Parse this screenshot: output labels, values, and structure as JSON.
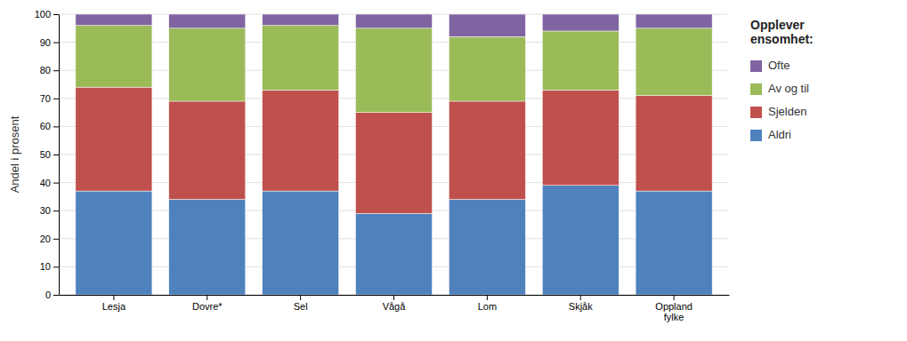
{
  "chart_data": {
    "type": "bar",
    "stacked": true,
    "categories": [
      "Lesja",
      "Dovre*",
      "Sel",
      "Vågå",
      "Lom",
      "Skjåk",
      "Oppland\nfylke"
    ],
    "series": [
      {
        "name": "Aldri",
        "color": "#4F81BD",
        "values": [
          37,
          34,
          37,
          29,
          34,
          39,
          37
        ]
      },
      {
        "name": "Sjelden",
        "color": "#C0504D",
        "values": [
          37,
          35,
          36,
          36,
          35,
          34,
          34
        ]
      },
      {
        "name": "Av og til",
        "color": "#9BBB59",
        "values": [
          22,
          26,
          23,
          30,
          23,
          21,
          24
        ]
      },
      {
        "name": "Ofte",
        "color": "#8064A2",
        "values": [
          4,
          5,
          4,
          5,
          8,
          6,
          5
        ]
      }
    ],
    "legend_title": "Opplever\nensomhet:",
    "legend": "right",
    "ylabel": "Andel i prosent",
    "ylim": [
      0,
      100
    ],
    "yticks": [
      0,
      10,
      20,
      30,
      40,
      50,
      60,
      70,
      80,
      90,
      100
    ],
    "grid": true
  }
}
